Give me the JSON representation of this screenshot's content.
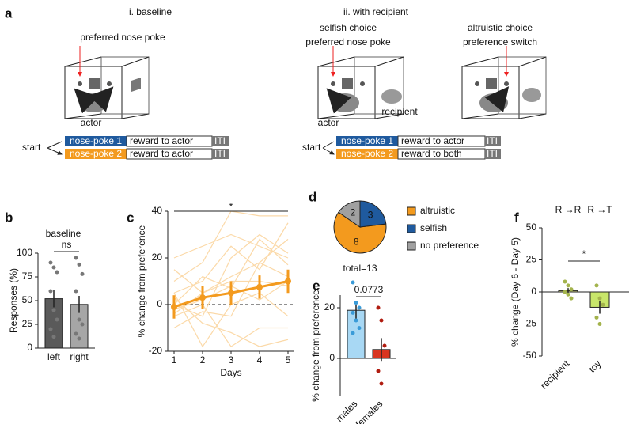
{
  "diagram": {
    "panel": "a",
    "left": {
      "title": "i. baseline",
      "label": "preferred nose poke",
      "actor": "actor",
      "start": "start",
      "rows": [
        [
          "nose-poke 1",
          "reward to actor",
          "ITI"
        ],
        [
          "nose-poke 2",
          "reward to actor",
          "ITI"
        ]
      ]
    },
    "right": {
      "title": "ii. with recipient",
      "selfish": [
        "selfish choice",
        "preferred nose poke"
      ],
      "altruistic": [
        "altruistic choice",
        "preference switch"
      ],
      "actor": "actor",
      "recipient": "recipient",
      "start": "start",
      "rows": [
        [
          "nose-poke 1",
          "reward to actor",
          "ITI"
        ],
        [
          "nose-poke 2",
          "reward to both",
          "ITI"
        ]
      ]
    }
  },
  "chart_data": [
    {
      "type": "bar",
      "panel": "b",
      "title": "baseline",
      "y_label": "Responses (%)",
      "categories": [
        "left",
        "right"
      ],
      "values": [
        52,
        46
      ],
      "errors": [
        9,
        9
      ],
      "colors": [
        "#5a5a5a",
        "#a6a6a6"
      ],
      "point_color": "#777777",
      "points": [
        [
          90,
          85,
          80,
          60,
          40,
          30,
          20,
          12
        ],
        [
          95,
          88,
          78,
          60,
          30,
          25,
          15,
          10
        ]
      ],
      "ylim": [
        0,
        100
      ],
      "yticks": [
        0,
        25,
        50,
        75,
        100
      ],
      "annotation": "ns"
    },
    {
      "type": "line",
      "panel": "c",
      "x_label": "Days",
      "y_label": "% change from preference",
      "x": [
        1,
        2,
        3,
        4,
        5
      ],
      "values": [
        -1,
        3,
        5,
        7.5,
        10
      ],
      "errors": [
        5,
        5,
        5,
        5,
        5
      ],
      "color": "#f39a1e",
      "individual_color": "#fbd9a8",
      "individual": [
        [
          10,
          18,
          40,
          38,
          38
        ],
        [
          5,
          10,
          25,
          15,
          35
        ],
        [
          0,
          -5,
          20,
          30,
          22
        ],
        [
          -5,
          0,
          -18,
          -10,
          -10
        ],
        [
          -10,
          -3,
          -5,
          18,
          12
        ],
        [
          20,
          25,
          30,
          25,
          20
        ],
        [
          0,
          12,
          7,
          28,
          17
        ],
        [
          3,
          -8,
          -12,
          -18,
          -15
        ],
        [
          -2,
          2,
          8,
          2,
          10
        ],
        [
          5,
          -18,
          0,
          5,
          -5
        ],
        [
          -4,
          5,
          12,
          18,
          28
        ],
        [
          15,
          5,
          10,
          10,
          8
        ]
      ],
      "xlim": [
        1,
        5
      ],
      "xticks": [
        1,
        2,
        3,
        4,
        5
      ],
      "ylim": [
        -20,
        40
      ],
      "yticks": [
        -20,
        0,
        20,
        40
      ],
      "annotation": "*"
    },
    {
      "type": "pie",
      "panel": "d",
      "categories": [
        "altruistic",
        "selfish",
        "no preference"
      ],
      "values": [
        8,
        3,
        2
      ],
      "colors": [
        "#f39a1e",
        "#1f5a9e",
        "#a0a0a0"
      ],
      "annotation": "total=13"
    },
    {
      "type": "bar",
      "panel": "e",
      "y_label": "% change from preference",
      "categories": [
        "males",
        "females"
      ],
      "values": [
        19,
        3.5
      ],
      "errors": [
        3.5,
        4.5
      ],
      "colors": [
        "#a8d8f4",
        "#d9341f"
      ],
      "point_colors": [
        "#3a9bd8",
        "#b01c10"
      ],
      "points": [
        [
          30,
          22,
          20,
          18,
          15,
          12,
          10
        ],
        [
          20,
          15,
          5,
          -5,
          -10
        ]
      ],
      "ylim": [
        -15,
        25
      ],
      "yticks": [
        0,
        20
      ],
      "annotation": "0.0773"
    },
    {
      "type": "bar",
      "panel": "f",
      "y_label": "% change (Day 6 - Day 5)",
      "categories": [
        "recipient",
        "toy"
      ],
      "group_labels": [
        "R →R",
        "R →T"
      ],
      "values": [
        1,
        -12
      ],
      "errors": [
        2,
        5
      ],
      "colors": [
        "#d8dc8c",
        "#c8e66a"
      ],
      "point_color": "#a3b34c",
      "points": [
        [
          8,
          5,
          2,
          0,
          -2,
          -5
        ],
        [
          5,
          -5,
          -10,
          -20,
          -25
        ]
      ],
      "ylim": [
        -50,
        50
      ],
      "yticks": [
        -50,
        -25,
        0,
        25,
        50
      ],
      "annotation": "*"
    }
  ]
}
